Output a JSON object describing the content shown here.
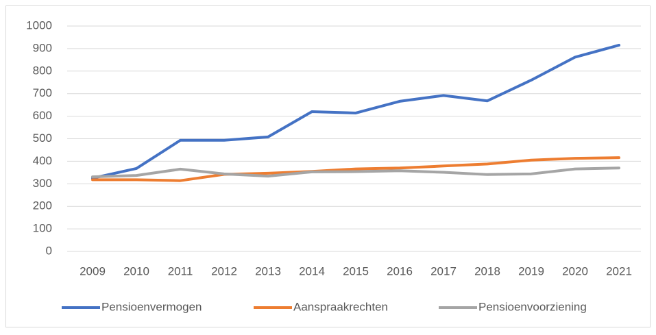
{
  "chart_data": {
    "type": "line",
    "categories": [
      "2009",
      "2010",
      "2011",
      "2012",
      "2013",
      "2014",
      "2015",
      "2016",
      "2017",
      "2018",
      "2019",
      "2020",
      "2021"
    ],
    "series": [
      {
        "name": "Pensioenvermogen",
        "color": "#4472c4",
        "values": [
          325,
          368,
          493,
          493,
          508,
          620,
          614,
          666,
          692,
          668,
          760,
          862,
          915
        ]
      },
      {
        "name": "Aanspraakrechten",
        "color": "#ed7d31",
        "values": [
          318,
          318,
          314,
          342,
          347,
          355,
          366,
          370,
          379,
          388,
          405,
          413,
          416
        ]
      },
      {
        "name": "Pensioenvoorziening",
        "color": "#a5a5a5",
        "values": [
          331,
          337,
          365,
          344,
          334,
          353,
          354,
          358,
          351,
          341,
          344,
          366,
          370
        ]
      }
    ],
    "ylim": [
      0,
      1000
    ],
    "yticks": [
      0,
      100,
      200,
      300,
      400,
      500,
      600,
      700,
      800,
      900,
      1000
    ],
    "grid": true,
    "legend": "bottom"
  }
}
